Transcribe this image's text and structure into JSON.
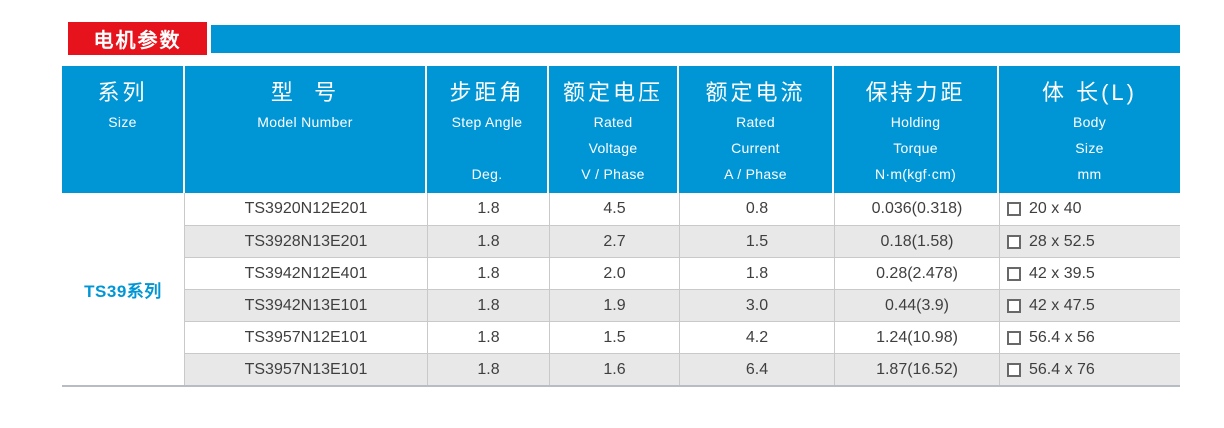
{
  "banner": {
    "label": "电机参数"
  },
  "colors": {
    "accent_blue": "#0096d6",
    "accent_red": "#e6131c",
    "row_alt_bg": "#e8e8e8",
    "grid_line": "#c9c9c9",
    "table_bottom_line": "#b7bdc5",
    "header_text": "#ffffff",
    "body_text": "#3f3f3f"
  },
  "table": {
    "series_label": "TS39系列",
    "columns": [
      {
        "cn": "系列",
        "en_lines": [
          "Size"
        ]
      },
      {
        "cn": "型  号",
        "en_lines": [
          "Model Number"
        ]
      },
      {
        "cn": "步距角",
        "en_lines": [
          "Step Angle",
          "",
          "Deg."
        ]
      },
      {
        "cn": "额定电压",
        "en_lines": [
          "Rated",
          "Voltage",
          "V / Phase"
        ]
      },
      {
        "cn": "额定电流",
        "en_lines": [
          "Rated",
          "Current",
          "A / Phase"
        ]
      },
      {
        "cn": "保持力距",
        "en_lines": [
          "Holding",
          "Torque",
          "N·m(kgf·cm)"
        ]
      },
      {
        "cn": "体 长(L)",
        "en_lines": [
          "Body",
          "Size",
          "mm"
        ]
      }
    ],
    "rows": [
      {
        "model": "TS3920N12E201",
        "step_angle": "1.8",
        "rated_voltage": "4.5",
        "rated_current": "0.8",
        "holding_torque": "0.036(0.318)",
        "body_size": "20 x 40"
      },
      {
        "model": "TS3928N13E201",
        "step_angle": "1.8",
        "rated_voltage": "2.7",
        "rated_current": "1.5",
        "holding_torque": "0.18(1.58)",
        "body_size": "28 x 52.5"
      },
      {
        "model": "TS3942N12E401",
        "step_angle": "1.8",
        "rated_voltage": "2.0",
        "rated_current": "1.8",
        "holding_torque": "0.28(2.478)",
        "body_size": "42 x 39.5"
      },
      {
        "model": "TS3942N13E101",
        "step_angle": "1.8",
        "rated_voltage": "1.9",
        "rated_current": "3.0",
        "holding_torque": "0.44(3.9)",
        "body_size": "42 x 47.5"
      },
      {
        "model": "TS3957N12E101",
        "step_angle": "1.8",
        "rated_voltage": "1.5",
        "rated_current": "4.2",
        "holding_torque": "1.24(10.98)",
        "body_size": "56.4 x 56"
      },
      {
        "model": "TS3957N13E101",
        "step_angle": "1.8",
        "rated_voltage": "1.6",
        "rated_current": "6.4",
        "holding_torque": "1.87(16.52)",
        "body_size": "56.4 x 76"
      }
    ]
  }
}
